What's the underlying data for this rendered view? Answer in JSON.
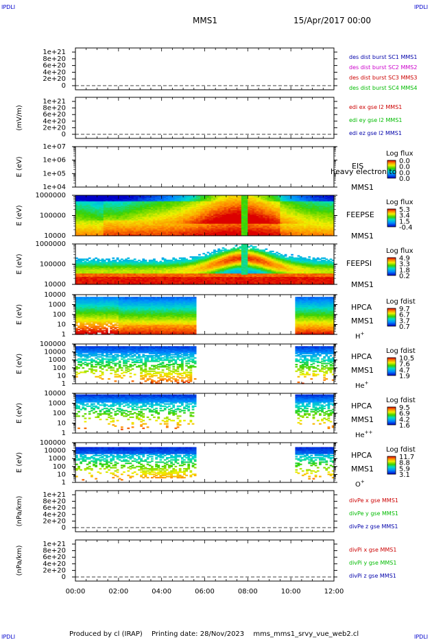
{
  "corner_label": "IPDLI",
  "header": {
    "spacecraft": "MMS1",
    "date": "15/Apr/2017 00:00"
  },
  "footer": {
    "produced": "Produced by cl (IRAP)",
    "printing": "Printing date: 28/Nov/2023",
    "file": "mms_mms1_srvy_vue_web2.cl"
  },
  "colors": {
    "red": "#cc0000",
    "magenta": "#cc00cc",
    "green": "#00bb00",
    "blue": "#0000aa"
  },
  "chart_data": [
    {
      "type": "line",
      "id": "des-dist-burst",
      "yticks": [
        "0",
        "2e+20",
        "4e+20",
        "6e+20",
        "8e+20",
        "1e+21"
      ],
      "ylabel": "",
      "legend": [
        {
          "name": "des dist burst SC1 MMS1",
          "color": "blue"
        },
        {
          "name": "des dist burst SC2 MMS2",
          "color": "magenta"
        },
        {
          "name": "des dist burst SC3 MMS3",
          "color": "red"
        },
        {
          "name": "des dist burst SC4 MMS4",
          "color": "green"
        }
      ],
      "ylim": [
        0,
        1e+21
      ],
      "series": []
    },
    {
      "type": "line",
      "id": "edi",
      "yticks": [
        "0",
        "2e+20",
        "4e+20",
        "6e+20",
        "8e+20",
        "1e+21"
      ],
      "ylabel": "(mV/m)",
      "legend": [
        {
          "name": "edi ex gse l2 MMS1",
          "color": "red"
        },
        {
          "name": "edi ey gse l2 MMS1",
          "color": "green"
        },
        {
          "name": "edi ez gse l2 MMS1",
          "color": "blue"
        }
      ],
      "ylim": [
        0,
        1e+21
      ],
      "series": []
    },
    {
      "type": "heatmap",
      "id": "eis",
      "yticks": [
        "1e+04",
        "1e+05",
        "1e+06",
        "1e+07"
      ],
      "ylabel": "E (eV)",
      "instrument": "EIS",
      "subtitle": "heavy electron to",
      "sc": "MMS1",
      "colorbar_title": "Log flux",
      "colorbar_ticks": [
        "0.0",
        "0.0",
        "0.0",
        "0.0"
      ],
      "ylim": [
        10000,
        10000000
      ],
      "data": []
    },
    {
      "type": "heatmap",
      "id": "feeps-e",
      "yticks": [
        "10000",
        "100000",
        "1000000"
      ],
      "ylabel": "E (eV)",
      "instrument": "FEEPSE",
      "sc": "MMS1",
      "colorbar_title": "Log flux",
      "colorbar_ticks": [
        "5.3",
        "3.4",
        "1.5",
        "-0.4"
      ],
      "ylim": [
        10000,
        1000000
      ]
    },
    {
      "type": "heatmap",
      "id": "feeps-i",
      "yticks": [
        "10000",
        "100000",
        "1000000"
      ],
      "ylabel": "E (eV)",
      "instrument": "FEEPSI",
      "sc": "MMS1",
      "colorbar_title": "Log flux",
      "colorbar_ticks": [
        "4.9",
        "3.3",
        "1.8",
        "0.2"
      ],
      "ylim": [
        10000,
        1000000
      ]
    },
    {
      "type": "heatmap",
      "id": "hpca-h",
      "yticks": [
        "1",
        "10",
        "100",
        "1000",
        "10000"
      ],
      "ylabel": "E (eV)",
      "instrument": "HPCA",
      "sc": "MMS1",
      "species": "H",
      "species_sup": "+",
      "colorbar_title": "Log fdist",
      "colorbar_ticks": [
        "9.7",
        "6.7",
        "3.7",
        "0.7"
      ],
      "ylim": [
        1,
        30000
      ]
    },
    {
      "type": "heatmap",
      "id": "hpca-he",
      "yticks": [
        "1",
        "10",
        "100",
        "1000",
        "10000",
        "100000"
      ],
      "ylabel": "E (eV)",
      "instrument": "HPCA",
      "sc": "MMS1",
      "species": "He",
      "species_sup": "+",
      "colorbar_title": "Log fdist",
      "colorbar_ticks": [
        "10.5",
        "7.6",
        "4.7",
        "1.9"
      ],
      "ylim": [
        1,
        100000
      ]
    },
    {
      "type": "heatmap",
      "id": "hpca-hepp",
      "yticks": [
        "1",
        "10",
        "100",
        "1000",
        "10000"
      ],
      "ylabel": "E (eV)",
      "instrument": "HPCA",
      "sc": "MMS1",
      "species": "He",
      "species_sup": "++",
      "colorbar_title": "Log fdist",
      "colorbar_ticks": [
        "9.5",
        "6.9",
        "4.2",
        "1.6"
      ],
      "ylim": [
        1,
        20000
      ]
    },
    {
      "type": "heatmap",
      "id": "hpca-o",
      "yticks": [
        "1",
        "10",
        "100",
        "1000",
        "10000",
        "100000"
      ],
      "ylabel": "E (eV)",
      "instrument": "HPCA",
      "sc": "MMS1",
      "species": "O",
      "species_sup": "+",
      "colorbar_title": "Log fdist",
      "colorbar_ticks": [
        "11.7",
        "8.8",
        "5.9",
        "3.1"
      ],
      "ylim": [
        1,
        100000
      ]
    },
    {
      "type": "line",
      "id": "divpe",
      "yticks": [
        "0",
        "2e+20",
        "4e+20",
        "6e+20",
        "8e+20",
        "1e+21"
      ],
      "ylabel": "(nPa/km)",
      "legend": [
        {
          "name": "divPe x gse MMS1",
          "color": "red"
        },
        {
          "name": "divPe y gse MMS1",
          "color": "green"
        },
        {
          "name": "divPe z gse MMS1",
          "color": "blue"
        }
      ],
      "ylim": [
        0,
        1e+21
      ],
      "series": []
    },
    {
      "type": "line",
      "id": "divpi",
      "yticks": [
        "0",
        "2e+20",
        "4e+20",
        "6e+20",
        "8e+20",
        "1e+21"
      ],
      "ylabel": "(nPa/km)",
      "legend": [
        {
          "name": "divPi x gse MMS1",
          "color": "red"
        },
        {
          "name": "divPi y gse MMS1",
          "color": "green"
        },
        {
          "name": "divPi z gse MMS1",
          "color": "blue"
        }
      ],
      "ylim": [
        0,
        1e+21
      ],
      "series": []
    }
  ],
  "xaxis": {
    "ticks": [
      "00:00",
      "02:00",
      "04:00",
      "06:00",
      "08:00",
      "10:00",
      "12:00"
    ],
    "xlim_hours": [
      0,
      12
    ]
  },
  "hpca_gap_hours": [
    5.6,
    10.2
  ]
}
